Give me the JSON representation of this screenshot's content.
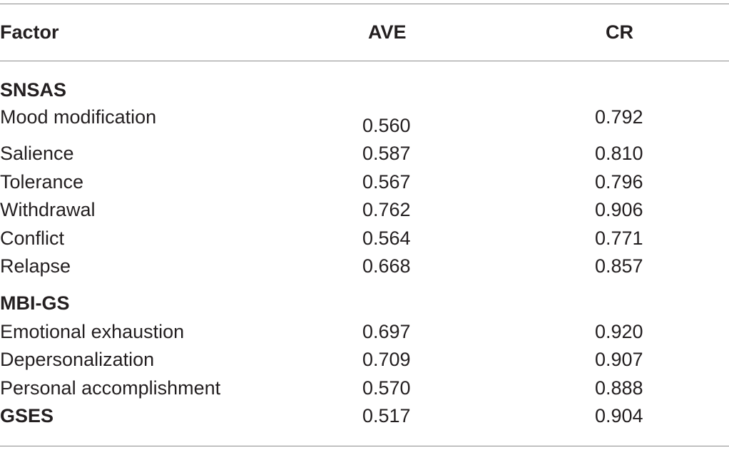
{
  "table": {
    "headers": {
      "factor": "Factor",
      "ave": "AVE",
      "cr": "CR"
    },
    "groups": [
      {
        "name": "SNSAS",
        "rows": [
          {
            "factor": "Mood modification",
            "ave": "0.560",
            "cr": "0.792"
          },
          {
            "factor": "Salience",
            "ave": "0.587",
            "cr": "0.810"
          },
          {
            "factor": "Tolerance",
            "ave": "0.567",
            "cr": "0.796"
          },
          {
            "factor": "Withdrawal",
            "ave": "0.762",
            "cr": "0.906"
          },
          {
            "factor": "Conflict",
            "ave": "0.564",
            "cr": "0.771"
          },
          {
            "factor": "Relapse",
            "ave": "0.668",
            "cr": "0.857"
          }
        ]
      },
      {
        "name": "MBI-GS",
        "rows": [
          {
            "factor": "Emotional exhaustion",
            "ave": "0.697",
            "cr": "0.920"
          },
          {
            "factor": "Depersonalization",
            "ave": "0.709",
            "cr": "0.907"
          },
          {
            "factor": "Personal accomplishment",
            "ave": "0.570",
            "cr": "0.888"
          }
        ]
      }
    ],
    "gses": {
      "factor": "GSES",
      "ave": "0.517",
      "cr": "0.904"
    }
  }
}
